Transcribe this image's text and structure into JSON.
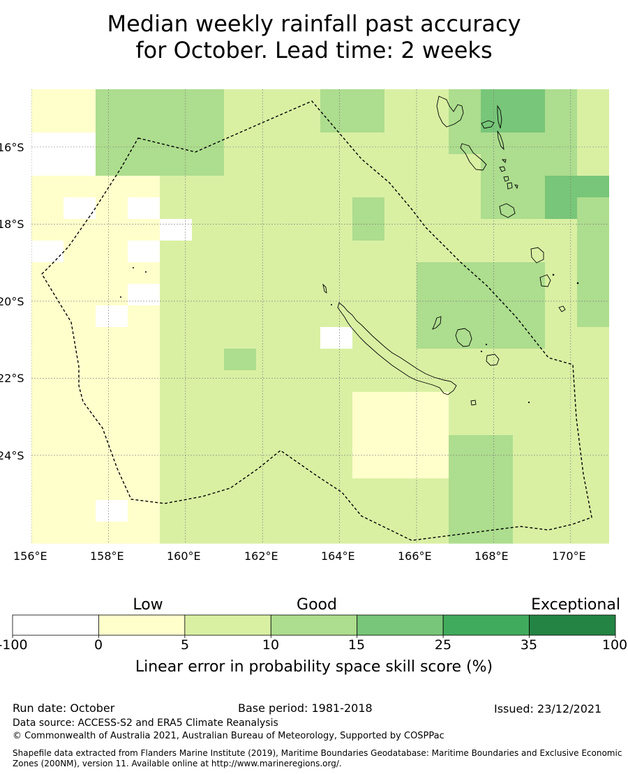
{
  "title": {
    "line1": "Median weekly rainfall past accuracy",
    "line2": "for October. Lead time: 2 weeks"
  },
  "map": {
    "lon_range": [
      156,
      171
    ],
    "lat_range": [
      -26.3,
      -14.5
    ],
    "x_ticks": [
      "156°E",
      "158°E",
      "160°E",
      "162°E",
      "164°E",
      "166°E",
      "168°E",
      "170°E"
    ],
    "y_ticks": [
      "16°S",
      "18°S",
      "20°S",
      "22°S",
      "24°S"
    ],
    "grid": true,
    "eez_boundary": "dashed",
    "regions": [
      "New Caledonia",
      "Vanuatu",
      "Loyalty Islands"
    ]
  },
  "colorbar": {
    "category_labels": [
      "Low",
      "Good",
      "Exceptional"
    ],
    "tick_labels": [
      "-100",
      "0",
      "5",
      "10",
      "15",
      "25",
      "35",
      "100"
    ],
    "colors": [
      "#ffffff",
      "#ffffcc",
      "#d9f0a3",
      "#addd8e",
      "#78c679",
      "#41ab5d",
      "#238443"
    ],
    "title": "Linear error in probability space skill score (%)"
  },
  "footer": {
    "run_date": "Run date: October",
    "base_period": "Base period: 1981-2018",
    "issued": "Issued: 23/12/2021",
    "data_source": "Data source: ACCESS-S2 and ERA5 Climate Reanalysis",
    "copyright": "© Commonwealth of Australia 2021, Australian Bureau of Meteorology, Supported by COSPPac",
    "shapefile": "Shapefile data extracted from Flanders Marine Institute (2019), Maritime Boundaries Geodatabase: Maritime Boundaries and Exclusive Economic Zones (200NM), version 11. Available online at http://www.marineregions.org/."
  }
}
